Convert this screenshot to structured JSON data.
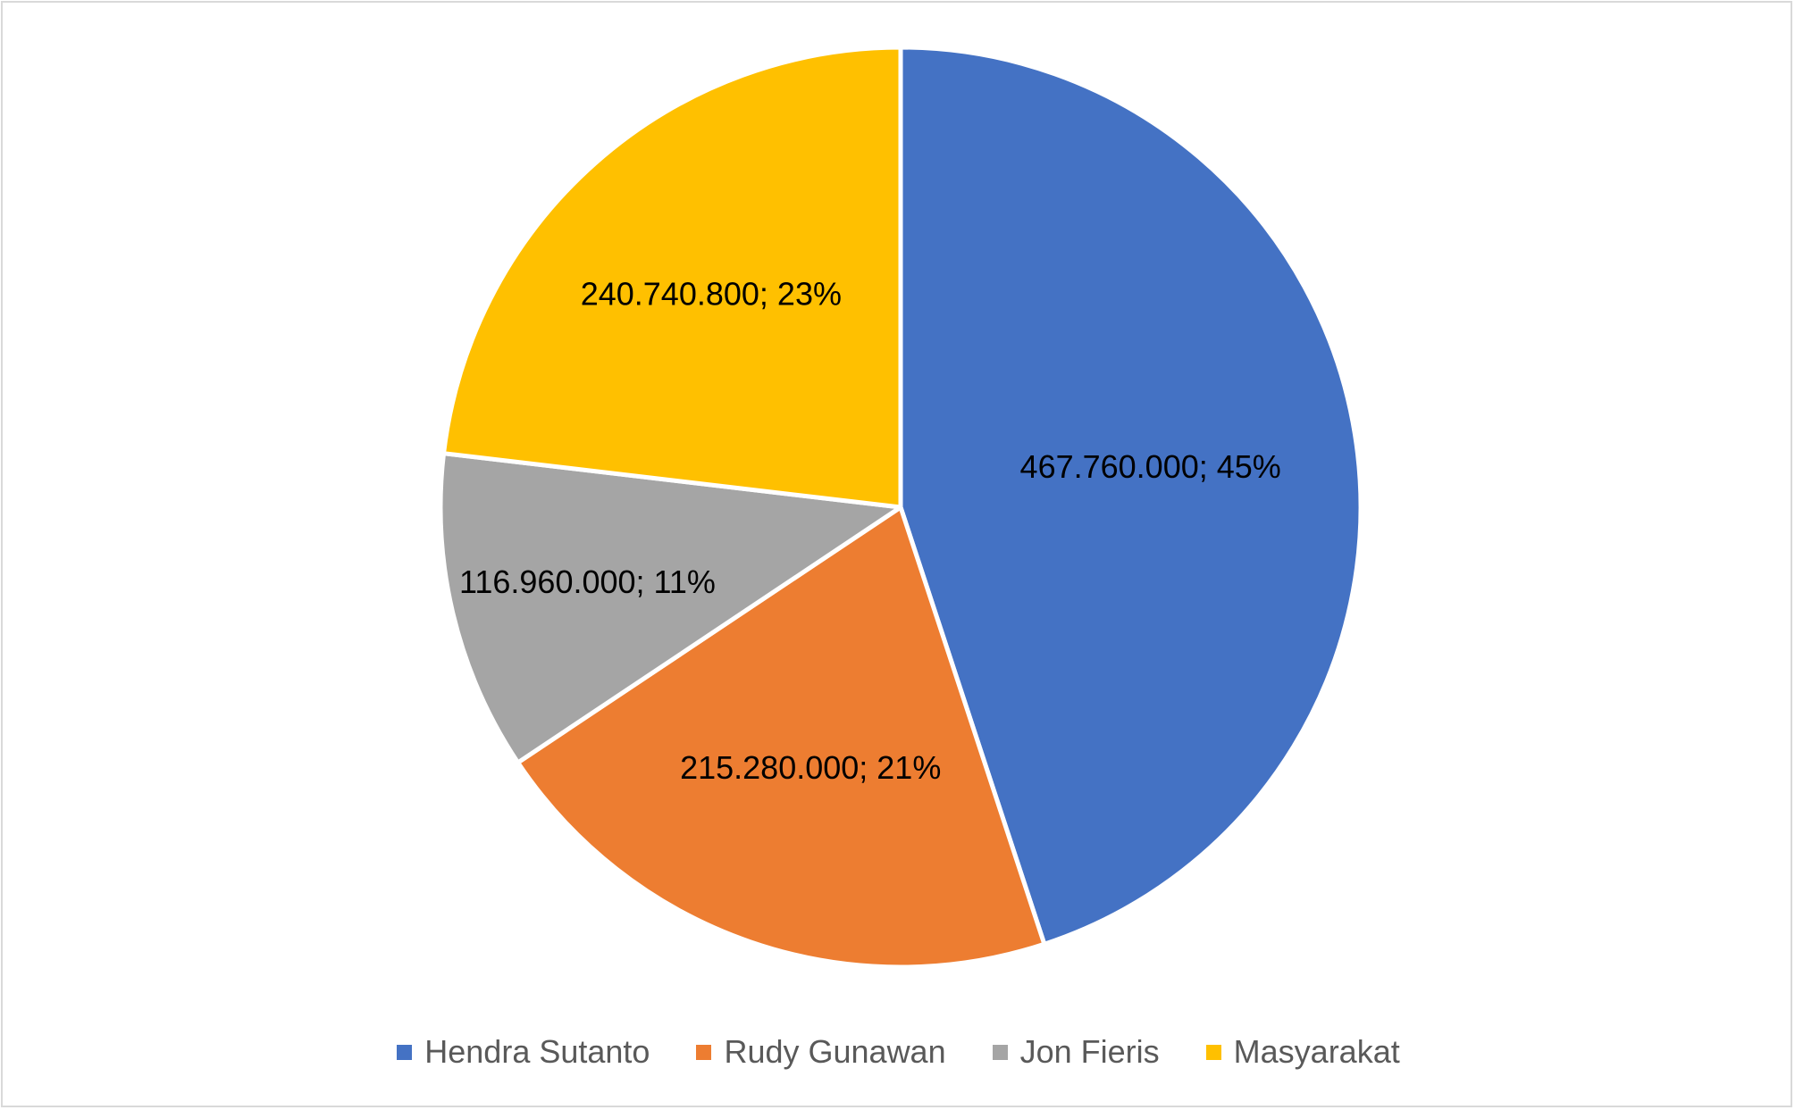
{
  "chart_data": {
    "type": "pie",
    "categories": [
      "Hendra Sutanto",
      "Rudy Gunawan",
      "Jon Fieris",
      "Masyarakat"
    ],
    "values": [
      467760000,
      215280000,
      116960000,
      240740800
    ],
    "value_labels": [
      "467.760.000",
      "215.280.000",
      "116.960.000",
      "240.740.800"
    ],
    "percent_labels": [
      "45%",
      "21%",
      "11%",
      "23%"
    ],
    "data_labels": [
      "467.760.000; 45%",
      "215.280.000; 21%",
      "116.960.000; 11%",
      "240.740.800; 23%"
    ],
    "colors": [
      "#4472C4",
      "#ED7D31",
      "#A5A5A5",
      "#FFC000"
    ],
    "title": "",
    "legend_position": "bottom",
    "start_angle": "top, clockwise"
  },
  "legend": {
    "items": [
      {
        "label": "Hendra Sutanto",
        "color": "#4472C4"
      },
      {
        "label": "Rudy Gunawan",
        "color": "#ED7D31"
      },
      {
        "label": "Jon Fieris",
        "color": "#A5A5A5"
      },
      {
        "label": "Masyarakat",
        "color": "#FFC000"
      }
    ]
  }
}
